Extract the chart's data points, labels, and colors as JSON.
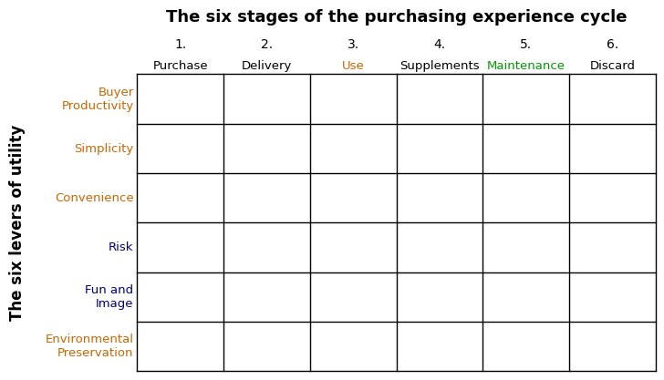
{
  "title": "The six stages of the purchasing experience cycle",
  "title_fontsize": 13,
  "title_fontweight": "bold",
  "col_labels_num": [
    "1.",
    "2.",
    "3.",
    "4.",
    "5.",
    "6."
  ],
  "col_labels_text": [
    "Purchase",
    "Delivery",
    "Use",
    "Supplements",
    "Maintenance",
    "Discard"
  ],
  "col_label_num_color": "#000000",
  "col_label_text_colors": [
    "#000000",
    "#000000",
    "#cc6600",
    "#000000",
    "#009900",
    "#000000"
  ],
  "row_labels": [
    "Buyer\nProductivity",
    "Simplicity",
    "Convenience",
    "Risk",
    "Fun and\nImage",
    "Environmental\nPreservation"
  ],
  "row_label_colors": [
    "#cc6600",
    "#cc6600",
    "#cc6600",
    "#000080",
    "#000080",
    "#cc6600"
  ],
  "ylabel": "The six levers of utility",
  "ylabel_fontsize": 12,
  "ylabel_fontweight": "bold",
  "n_cols": 6,
  "n_rows": 6,
  "background_color": "#ffffff",
  "grid_color": "#000000",
  "label_fontsize": 9.5,
  "num_label_fontsize": 10
}
